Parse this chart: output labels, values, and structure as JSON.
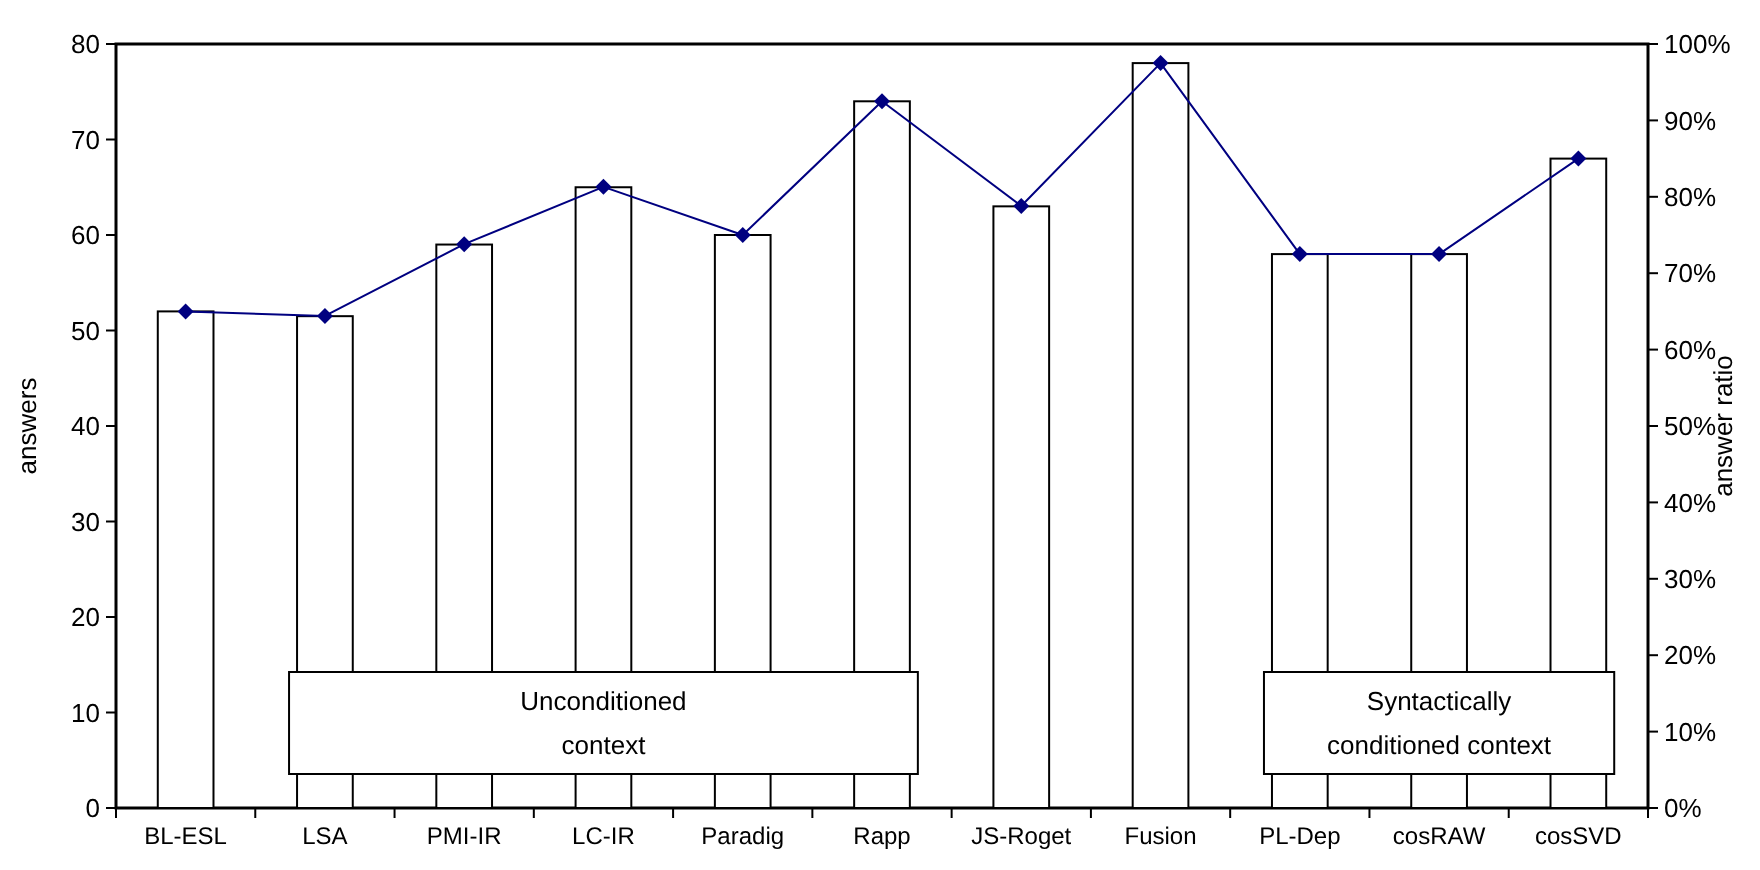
{
  "chart_data": {
    "type": "bar",
    "ylabel": "answers",
    "y2label": "answer ratio",
    "categories": [
      "BL-ESL",
      "LSA",
      "PMI-IR",
      "LC-IR",
      "Paradig",
      "Rapp",
      "JS-Roget",
      "Fusion",
      "PL-Dep",
      "cosRAW",
      "cosSVD"
    ],
    "series": [
      {
        "color": "#ffffff",
        "values": [
          52,
          51.5,
          59,
          65,
          60,
          74,
          63,
          78,
          58,
          58,
          68
        ]
      },
      {
        "type": "line",
        "axis": "y2",
        "color": "#000080",
        "marker": "diamond",
        "values": [
          65,
          64.4,
          73.8,
          81.3,
          75,
          92.5,
          78.8,
          97.5,
          72.5,
          72.5,
          85
        ]
      }
    ],
    "ylim": [
      0,
      80
    ],
    "yticks": [
      0,
      10,
      20,
      30,
      40,
      50,
      60,
      70,
      80
    ],
    "y2lim": [
      0,
      100
    ],
    "y2ticks": [
      {
        "value": 0,
        "label": "0%"
      },
      {
        "value": 10,
        "label": "10%"
      },
      {
        "value": 20,
        "label": "20%"
      },
      {
        "value": 30,
        "label": "30%"
      },
      {
        "value": 40,
        "label": "40%"
      },
      {
        "value": 50,
        "label": "50%"
      },
      {
        "value": 60,
        "label": "60%"
      },
      {
        "value": 70,
        "label": "70%"
      },
      {
        "value": 80,
        "label": "80%"
      },
      {
        "value": 90,
        "label": "90%"
      },
      {
        "value": 100,
        "label": "100%"
      }
    ],
    "grid": false,
    "annotations": [
      "Unconditioned\ncontext",
      "Syntactically\nconditioned context"
    ]
  }
}
